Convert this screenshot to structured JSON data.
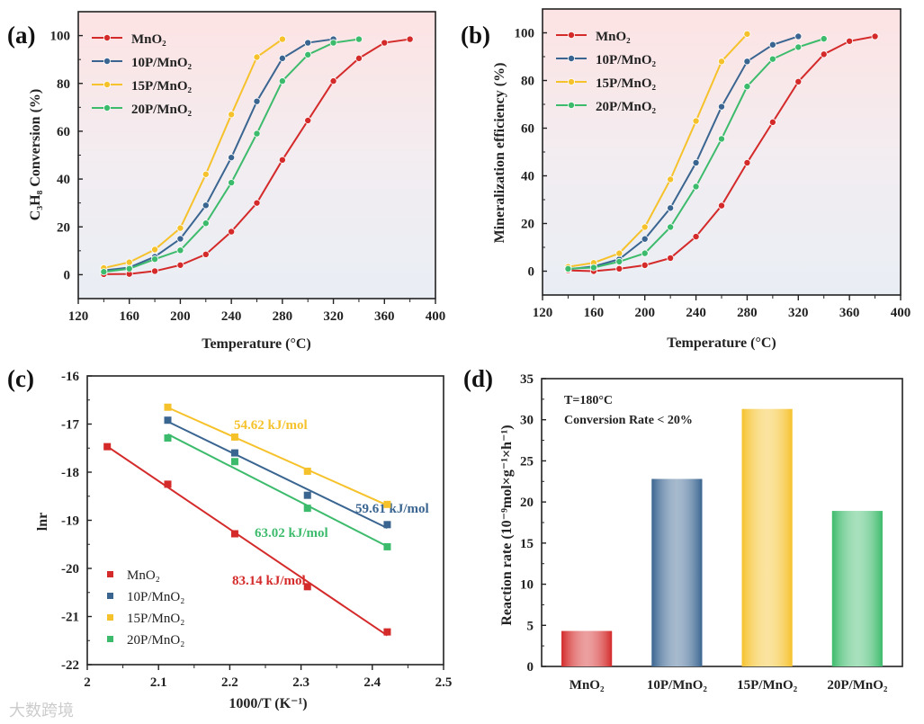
{
  "colors": {
    "MnO2": "#d42a2a",
    "10P": "#3a6591",
    "15P": "#f6c22c",
    "20P": "#3dbb6c"
  },
  "watermark": "大数跨境",
  "chart_data": [
    {
      "panel": "(a)",
      "type": "line",
      "xlabel": "Temperature (°C)",
      "ylabel": "C₃H₈ Conversion (%)",
      "xlim": [
        120,
        400
      ],
      "ylim": [
        -10,
        110
      ],
      "xticks": [
        120,
        160,
        200,
        240,
        280,
        320,
        360,
        400
      ],
      "yticks": [
        0,
        20,
        40,
        60,
        80,
        100
      ],
      "legend_position": "top-left",
      "series": [
        {
          "key": "MnO2",
          "name": "MnO₂",
          "x": [
            140,
            160,
            180,
            200,
            220,
            240,
            260,
            280,
            300,
            320,
            340,
            360,
            380
          ],
          "y": [
            0.2,
            0.3,
            1.5,
            4,
            8.5,
            18,
            30,
            48,
            64.5,
            81,
            90.5,
            97,
            98.5
          ]
        },
        {
          "key": "10P",
          "name": "10P/MnO₂",
          "x": [
            140,
            160,
            180,
            200,
            220,
            240,
            260,
            280,
            300,
            320
          ],
          "y": [
            1.8,
            3,
            7.5,
            15,
            29,
            49,
            72.5,
            90.5,
            97,
            98.5
          ]
        },
        {
          "key": "15P",
          "name": "15P/MnO₂",
          "x": [
            140,
            160,
            180,
            200,
            220,
            240,
            260,
            280
          ],
          "y": [
            2.8,
            5.2,
            10.5,
            19.5,
            42,
            67,
            91,
            98.5
          ]
        },
        {
          "key": "20P",
          "name": "20P/MnO₂",
          "x": [
            140,
            160,
            180,
            200,
            220,
            240,
            260,
            280,
            300,
            320,
            340
          ],
          "y": [
            1.2,
            2.5,
            6.5,
            10.2,
            21.5,
            38.5,
            59,
            81,
            92,
            97,
            98.5
          ]
        }
      ]
    },
    {
      "panel": "(b)",
      "type": "line",
      "xlabel": "Temperature (°C)",
      "ylabel": "Mineralization efficiency (%)",
      "xlim": [
        120,
        400
      ],
      "ylim": [
        -10,
        110
      ],
      "xticks": [
        120,
        160,
        200,
        240,
        280,
        320,
        360,
        400
      ],
      "yticks": [
        0,
        20,
        40,
        60,
        80,
        100
      ],
      "legend_position": "top-left",
      "series": [
        {
          "key": "MnO2",
          "name": "MnO₂",
          "x": [
            140,
            160,
            180,
            200,
            220,
            240,
            260,
            280,
            300,
            320,
            340,
            360,
            380
          ],
          "y": [
            0.3,
            0,
            1,
            2.5,
            5.5,
            14.5,
            27.5,
            45.5,
            62.5,
            79.5,
            91,
            96.5,
            98.5
          ]
        },
        {
          "key": "10P",
          "name": "10P/MnO₂",
          "x": [
            140,
            160,
            180,
            200,
            220,
            240,
            260,
            280,
            300,
            320
          ],
          "y": [
            0.8,
            2,
            5,
            13.5,
            26.5,
            45.5,
            69,
            88,
            95,
            98.5
          ]
        },
        {
          "key": "15P",
          "name": "15P/MnO₂",
          "x": [
            140,
            160,
            180,
            200,
            220,
            240,
            260,
            280
          ],
          "y": [
            1.8,
            3.5,
            7.5,
            18.5,
            38.5,
            63,
            88,
            99.5
          ]
        },
        {
          "key": "20P",
          "name": "20P/MnO₂",
          "x": [
            140,
            160,
            180,
            200,
            220,
            240,
            260,
            280,
            300,
            320,
            340
          ],
          "y": [
            1,
            1.5,
            4,
            7.5,
            18.5,
            35.5,
            55.5,
            77.5,
            89,
            94,
            97.5
          ]
        }
      ]
    },
    {
      "panel": "(c)",
      "type": "scatter",
      "xlabel": "1000/T (K⁻¹)",
      "ylabel": "lnr",
      "xlim": [
        2.0,
        2.5
      ],
      "ylim": [
        -22,
        -16
      ],
      "xticks": [
        2.0,
        2.1,
        2.2,
        2.3,
        2.4,
        2.5
      ],
      "yticks": [
        -22,
        -21,
        -20,
        -19,
        -18,
        -17,
        -16
      ],
      "legend_position": "bottom-left",
      "series": [
        {
          "key": "MnO2",
          "name": "MnO₂",
          "x": [
            2.028,
            2.113,
            2.207,
            2.309,
            2.421
          ],
          "y": [
            -17.47,
            -18.25,
            -19.28,
            -20.38,
            -21.32
          ],
          "annotation": "83.14 kJ/mol"
        },
        {
          "key": "10P",
          "name": "10P/MnO₂",
          "x": [
            2.113,
            2.207,
            2.309,
            2.421
          ],
          "y": [
            -16.92,
            -17.6,
            -18.48,
            -19.09
          ],
          "annotation": "59.61 kJ/mol"
        },
        {
          "key": "15P",
          "name": "15P/MnO₂",
          "x": [
            2.113,
            2.207,
            2.309,
            2.421
          ],
          "y": [
            -16.65,
            -17.27,
            -17.98,
            -18.67
          ],
          "annotation": "54.62 kJ/mol"
        },
        {
          "key": "20P",
          "name": "20P/MnO₂",
          "x": [
            2.113,
            2.207,
            2.309,
            2.421
          ],
          "y": [
            -17.29,
            -17.78,
            -18.75,
            -19.55
          ],
          "annotation": "63.02 kJ/mol"
        }
      ]
    },
    {
      "panel": "(d)",
      "type": "bar",
      "xlabel": "",
      "ylabel": "Reaction rate (10⁻⁹mol×g⁻¹×h⁻¹)",
      "ylim": [
        0,
        35
      ],
      "yticks": [
        0,
        5,
        10,
        15,
        20,
        25,
        30,
        35
      ],
      "annotations": [
        "T=180°C",
        "Conversion Rate < 20%"
      ],
      "categories": [
        "MnO₂",
        "10P/MnO₂",
        "15P/MnO₂",
        "20P/MnO₂"
      ],
      "keys": [
        "MnO2",
        "10P",
        "15P",
        "20P"
      ],
      "values": [
        4.3,
        22.8,
        31.3,
        18.9
      ]
    }
  ]
}
